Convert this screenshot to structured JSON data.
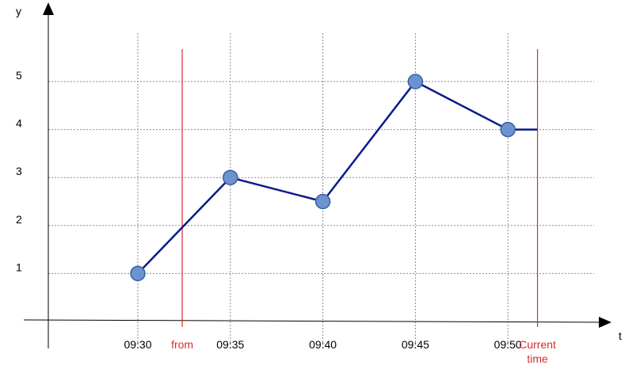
{
  "chart_data": {
    "type": "line",
    "xlabel": "t",
    "ylabel": "y",
    "x": [
      "09:30",
      "09:35",
      "09:40",
      "09:45",
      "09:50"
    ],
    "y": [
      1,
      3,
      2.5,
      5,
      4
    ],
    "series": [
      {
        "values": [
          1,
          3,
          2.5,
          5,
          4
        ]
      }
    ],
    "tail": {
      "from_x": "09:50",
      "to_x": "Current time",
      "value": 4
    },
    "x_ticks": [
      "09:30",
      "09:35",
      "09:40",
      "09:45",
      "09:50"
    ],
    "y_ticks": [
      1,
      2,
      3,
      4,
      5
    ],
    "markers": [
      {
        "label": "from",
        "position_minutes_after_0930": 2.4
      },
      {
        "label_lines": [
          "Current",
          "time"
        ],
        "position_minutes_after_0930": 21.6
      }
    ],
    "grid": true,
    "colors": {
      "line": "#0a1a8c",
      "point_fill": "#6b93cf",
      "point_stroke": "#3c5f9c",
      "marker": "#d92b2b",
      "grid": "#8a8a8a"
    }
  }
}
